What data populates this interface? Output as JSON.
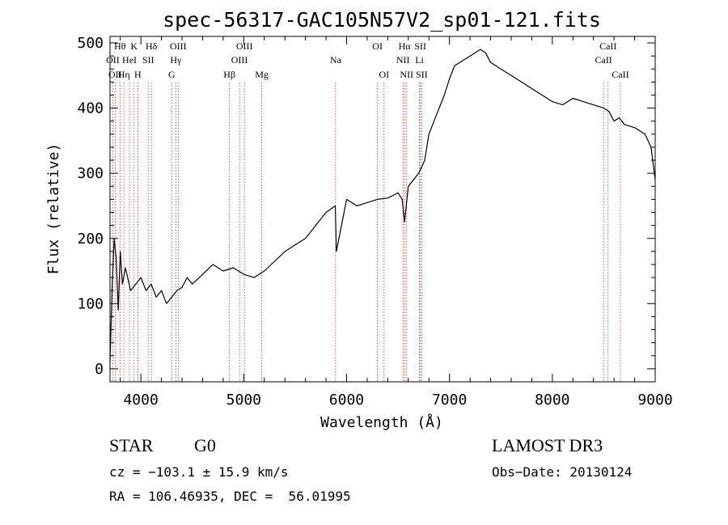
{
  "chart_data": {
    "type": "line",
    "title": "spec-56317-GAC105N57V2_sp01-121.fits",
    "xlabel": "Wavelength (Å)",
    "ylabel": "Flux (relative)",
    "xlim": [
      3700,
      9000
    ],
    "ylim": [
      -20,
      510
    ],
    "xticks": [
      4000,
      5000,
      6000,
      7000,
      8000,
      9000
    ],
    "yticks": [
      0,
      100,
      200,
      300,
      400,
      500
    ],
    "series": [
      {
        "name": "flux",
        "x": [
          3700,
          3720,
          3740,
          3760,
          3780,
          3800,
          3820,
          3850,
          3900,
          3950,
          4000,
          4050,
          4100,
          4150,
          4200,
          4250,
          4300,
          4350,
          4400,
          4450,
          4500,
          4600,
          4700,
          4800,
          4900,
          5000,
          5100,
          5200,
          5300,
          5400,
          5500,
          5600,
          5700,
          5800,
          5890,
          5900,
          6000,
          6100,
          6200,
          6300,
          6400,
          6500,
          6540,
          6563,
          6600,
          6700,
          6760,
          6800,
          6850,
          6900,
          6950,
          7000,
          7050,
          7100,
          7200,
          7300,
          7350,
          7400,
          7500,
          7600,
          7700,
          7800,
          7900,
          8000,
          8100,
          8200,
          8300,
          8400,
          8500,
          8550,
          8600,
          8650,
          8700,
          8800,
          8900,
          8960,
          9000
        ],
        "y": [
          10,
          120,
          200,
          170,
          90,
          180,
          130,
          155,
          120,
          130,
          140,
          120,
          130,
          110,
          120,
          100,
          110,
          120,
          125,
          140,
          130,
          145,
          160,
          150,
          155,
          145,
          140,
          150,
          165,
          180,
          190,
          200,
          220,
          240,
          250,
          180,
          260,
          250,
          255,
          260,
          262,
          270,
          260,
          225,
          280,
          300,
          320,
          360,
          380,
          400,
          420,
          445,
          465,
          470,
          480,
          490,
          485,
          470,
          460,
          450,
          440,
          430,
          420,
          410,
          405,
          415,
          410,
          405,
          400,
          395,
          380,
          385,
          375,
          370,
          360,
          340,
          290
        ]
      }
    ],
    "lines": [
      {
        "wave": 3727,
        "label": "OII",
        "row": 2
      },
      {
        "wave": 3750,
        "label": "OII",
        "row": 3
      },
      {
        "wave": 3797,
        "label": "Hθ",
        "row": 1
      },
      {
        "wave": 3835,
        "label": "Hη",
        "row": 3
      },
      {
        "wave": 3889,
        "label": "HeI",
        "row": 2
      },
      {
        "wave": 3934,
        "label": "K",
        "row": 1
      },
      {
        "wave": 3970,
        "label": "H",
        "row": 3
      },
      {
        "wave": 4072,
        "label": "SII",
        "row": 2
      },
      {
        "wave": 4102,
        "label": "Hδ",
        "row": 1
      },
      {
        "wave": 4300,
        "label": "G",
        "row": 3
      },
      {
        "wave": 4340,
        "label": "Hγ",
        "row": 2
      },
      {
        "wave": 4363,
        "label": "OIII",
        "row": 1
      },
      {
        "wave": 4861,
        "label": "Hβ",
        "row": 3
      },
      {
        "wave": 4959,
        "label": "OIII",
        "row": 2
      },
      {
        "wave": 5007,
        "label": "OIII",
        "row": 1
      },
      {
        "wave": 5175,
        "label": "Mg",
        "row": 3
      },
      {
        "wave": 5893,
        "label": "Na",
        "row": 2
      },
      {
        "wave": 6300,
        "label": "OI",
        "row": 1
      },
      {
        "wave": 6364,
        "label": "OI",
        "row": 3
      },
      {
        "wave": 6548,
        "label": "NII",
        "row": 2
      },
      {
        "wave": 6563,
        "label": "Hα",
        "row": 1
      },
      {
        "wave": 6584,
        "label": "NII",
        "row": 3
      },
      {
        "wave": 6708,
        "label": "Li",
        "row": 2
      },
      {
        "wave": 6717,
        "label": "SII",
        "row": 1
      },
      {
        "wave": 6731,
        "label": "SII",
        "row": 3
      },
      {
        "wave": 8498,
        "label": "CaII",
        "row": 2
      },
      {
        "wave": 8542,
        "label": "CaII",
        "row": 1
      },
      {
        "wave": 8662,
        "label": "CaII",
        "row": 3
      }
    ]
  },
  "footer": {
    "class": "STAR",
    "subclass": "G0",
    "cz": "cz = −103.1 ± 15.9 km/s",
    "radec": "RA = 106.46935, DEC =  56.01995",
    "survey": "LAMOST DR3",
    "obsdate": "Obs−Date: 20130124"
  },
  "colors": {
    "line_marker": "#c0392b",
    "spectrum": "#000000"
  }
}
